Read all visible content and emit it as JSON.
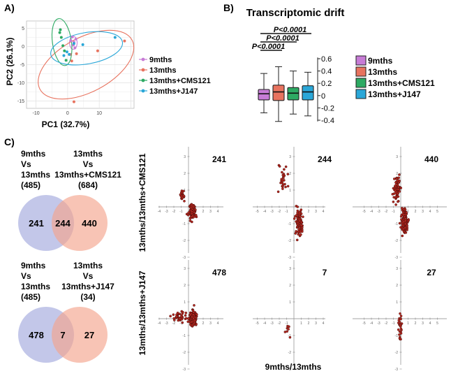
{
  "panels": {
    "a": "A)",
    "b": "B)",
    "c": "C)"
  },
  "colors": {
    "9mths": "#c77cd6",
    "13mths": "#e8735f",
    "13mths+CMS121": "#2daa63",
    "13mths+J147": "#2aa7d8",
    "venn_left": "#a3a9dd",
    "venn_right": "#f5a58e",
    "scatter_point": "#b3261e"
  },
  "chart_data": [
    {
      "id": "pca",
      "type": "scatter",
      "xlabel": "PC1 (32.7%)",
      "ylabel": "PC2 (26.1%)",
      "xlim": [
        -13,
        21
      ],
      "ylim": [
        -17,
        7
      ],
      "xticks": [
        -10,
        0,
        10
      ],
      "yticks": [
        5,
        0,
        -5,
        -10,
        -15
      ],
      "grid": true,
      "legend_position": "right",
      "series": [
        {
          "name": "9mths",
          "color": "#c77cd6",
          "points": [
            [
              1.5,
              2.6
            ],
            [
              2.0,
              1.2
            ],
            [
              2.3,
              -0.4
            ],
            [
              1.8,
              0.4
            ],
            [
              2.6,
              2.0
            ],
            [
              1.0,
              1.6
            ]
          ],
          "ellipse": {
            "cx": 1.8,
            "cy": 1.0,
            "rx": 1.2,
            "ry": 1.8,
            "angle": 0
          }
        },
        {
          "name": "13mths",
          "color": "#e8735f",
          "points": [
            [
              0.8,
              -2.2
            ],
            [
              1.3,
              -4.0
            ],
            [
              2.0,
              -15.2
            ],
            [
              18.0,
              1.5
            ],
            [
              9.5,
              -1.2
            ],
            [
              2.8,
              -2.0
            ]
          ],
          "ellipse": {
            "cx": 5.8,
            "cy": -5.0,
            "rx": 16.5,
            "ry": 7.5,
            "angle": -28
          }
        },
        {
          "name": "13mths+CMS121",
          "color": "#2daa63",
          "points": [
            [
              -2.5,
              3.8
            ],
            [
              -2.0,
              2.5
            ],
            [
              -1.5,
              0.2
            ],
            [
              -0.5,
              -3.8
            ],
            [
              -2.3,
              4.6
            ],
            [
              -1.0,
              -1.2
            ]
          ],
          "ellipse": {
            "cx": -1.8,
            "cy": 1.2,
            "rx": 3.0,
            "ry": 6.5,
            "angle": -8
          }
        },
        {
          "name": "13mths+J147",
          "color": "#2aa7d8",
          "points": [
            [
              -1.2,
              -2.5
            ],
            [
              4.8,
              0.5
            ],
            [
              15.0,
              2.5
            ],
            [
              0.5,
              -2.2
            ],
            [
              -0.2,
              -1.5
            ],
            [
              2.0,
              0.8
            ]
          ],
          "ellipse": {
            "cx": 6.0,
            "cy": -0.5,
            "rx": 11.5,
            "ry": 4.3,
            "angle": -10
          }
        }
      ]
    },
    {
      "id": "drift",
      "type": "box",
      "title": "Transcriptomic drift",
      "ylim": [
        -0.45,
        0.65
      ],
      "yticks": [
        0.6,
        0.4,
        0.2,
        0,
        -0.2,
        -0.4
      ],
      "ytick_labels": [
        "0.6",
        "0.4",
        "0.2",
        "0",
        "-0.2",
        "-0.4"
      ],
      "legend_position": "right",
      "series": [
        {
          "name": "9mths",
          "color": "#c77cd6",
          "min": -0.28,
          "q1": -0.07,
          "median": 0.03,
          "q3": 0.1,
          "max": 0.36
        },
        {
          "name": "13mths",
          "color": "#e8735f",
          "min": -0.42,
          "q1": -0.08,
          "median": 0.06,
          "q3": 0.17,
          "max": 0.47
        },
        {
          "name": "13mths+CMS121",
          "color": "#2daa63",
          "min": -0.3,
          "q1": -0.07,
          "median": 0.04,
          "q3": 0.13,
          "max": 0.4
        },
        {
          "name": "13mths+J147",
          "color": "#2aa7d8",
          "min": -0.33,
          "q1": -0.07,
          "median": 0.06,
          "q3": 0.16,
          "max": 0.38
        }
      ],
      "annotations": [
        {
          "label": "P<0.0001",
          "from": 0,
          "to": 3
        },
        {
          "label": "P<0.0001",
          "from": 0,
          "to": 2
        },
        {
          "label": "P<0.0001",
          "from": 0,
          "to": 1
        }
      ]
    },
    {
      "id": "venn-cms121",
      "type": "venn",
      "sets": [
        {
          "lines": [
            "9mths",
            "Vs",
            "13mths",
            "(485)"
          ],
          "only": "241"
        },
        {
          "lines": [
            "13mths",
            "Vs",
            "13mths+CMS121",
            "(684)"
          ],
          "only": "440"
        }
      ],
      "overlap": "244"
    },
    {
      "id": "venn-j147",
      "type": "venn",
      "sets": [
        {
          "lines": [
            "9mths",
            "Vs",
            "13mths",
            "(485)"
          ],
          "only": "478"
        },
        {
          "lines": [
            "13mths",
            "Vs",
            "13mths+J147",
            "(34)"
          ],
          "only": "27"
        }
      ],
      "overlap": "7"
    },
    {
      "id": "quadrant-scatters",
      "type": "scatter",
      "xlabel": "9mths/13mths",
      "row_ylabels": [
        "13mths/13mths+CMS121",
        "13mths/13mths+J147"
      ],
      "xlim": [
        -5,
        5
      ],
      "ylim": [
        -3,
        3
      ],
      "xticks": [
        -5,
        -4,
        -3,
        -2,
        -1,
        1,
        2,
        3,
        4,
        5
      ],
      "yticks": [
        3,
        2,
        1,
        -1,
        -2,
        -3
      ],
      "panels": [
        {
          "label": "241",
          "clusters": [
            {
              "cx": 0.5,
              "cy": -0.3,
              "sx": 0.4,
              "sy": 0.35,
              "n": 110
            },
            {
              "cx": -0.9,
              "cy": 0.6,
              "sx": 0.3,
              "sy": 0.3,
              "n": 20
            }
          ]
        },
        {
          "label": "244",
          "clusters": [
            {
              "cx": 0.7,
              "cy": -0.9,
              "sx": 0.4,
              "sy": 0.6,
              "n": 100
            },
            {
              "cx": -1.5,
              "cy": 1.7,
              "sx": 0.5,
              "sy": 0.6,
              "n": 25
            }
          ]
        },
        {
          "label": "440",
          "clusters": [
            {
              "cx": 0.5,
              "cy": -0.8,
              "sx": 0.35,
              "sy": 0.6,
              "n": 150
            },
            {
              "cx": -0.5,
              "cy": 1.1,
              "sx": 0.35,
              "sy": 0.6,
              "n": 70
            }
          ]
        },
        {
          "label": "478",
          "clusters": [
            {
              "cx": 0.6,
              "cy": 0.0,
              "sx": 0.4,
              "sy": 0.4,
              "n": 150
            },
            {
              "cx": -1.3,
              "cy": 0.2,
              "sx": 0.8,
              "sy": 0.3,
              "n": 40
            }
          ]
        },
        {
          "label": "7",
          "clusters": [
            {
              "cx": -0.8,
              "cy": -0.6,
              "sx": 0.25,
              "sy": 0.7,
              "n": 7
            }
          ]
        },
        {
          "label": "27",
          "clusters": [
            {
              "cx": -0.1,
              "cy": -0.5,
              "sx": 0.2,
              "sy": 0.6,
              "n": 27
            }
          ]
        }
      ]
    }
  ]
}
